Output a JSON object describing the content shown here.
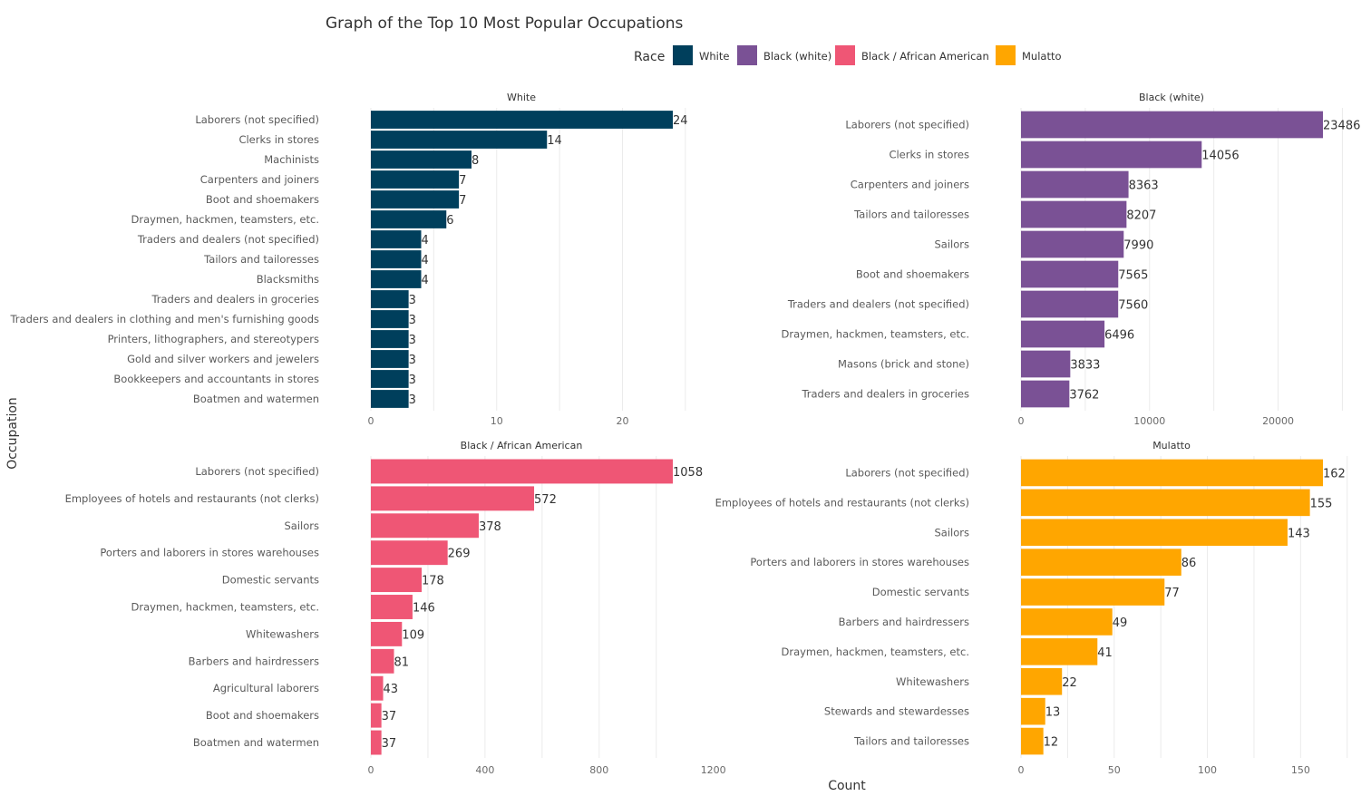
{
  "chart_data": {
    "type": "bar",
    "title": "Graph of the Top 10 Most Popular Occupations",
    "xlabel": "Count",
    "ylabel": "Occupation",
    "legend": {
      "title": "Race",
      "position": "top",
      "items": [
        {
          "name": "White",
          "color": "#003f5c"
        },
        {
          "name": "Black (white)",
          "color": "#7a5195"
        },
        {
          "name": "Black / African American",
          "color": "#ef5675"
        },
        {
          "name": "Mulatto",
          "color": "#ffa600"
        }
      ]
    },
    "panels": [
      {
        "name": "White",
        "color": "#003f5c",
        "xlim": [
          0,
          24
        ],
        "ticks": [
          0,
          10,
          20
        ],
        "categories": [
          "Laborers (not specified)",
          "Clerks in stores",
          "Machinists",
          "Carpenters and joiners",
          "Boot and shoemakers",
          "Draymen, hackmen, teamsters, etc.",
          "Traders and dealers (not specified)",
          "Tailors and tailoresses",
          "Blacksmiths",
          "Traders and dealers in groceries",
          "Traders and dealers in clothing and men's furnishing goods",
          "Printers, lithographers, and stereotypers",
          "Gold and silver workers and jewelers",
          "Bookkeepers and accountants in stores",
          "Boatmen and watermen"
        ],
        "values": [
          24,
          14,
          8,
          7,
          7,
          6,
          4,
          4,
          4,
          3,
          3,
          3,
          3,
          3,
          3
        ]
      },
      {
        "name": "Black (white)",
        "color": "#7a5195",
        "xlim": [
          0,
          23486
        ],
        "ticks": [
          0,
          10000,
          20000
        ],
        "categories": [
          "Laborers (not specified)",
          "Clerks in stores",
          "Carpenters and joiners",
          "Tailors and tailoresses",
          "Sailors",
          "Boot and shoemakers",
          "Traders and dealers (not specified)",
          "Draymen, hackmen, teamsters, etc.",
          "Masons (brick and stone)",
          "Traders and dealers in groceries"
        ],
        "values": [
          23486,
          14056,
          8363,
          8207,
          7990,
          7565,
          7560,
          6496,
          3833,
          3762
        ]
      },
      {
        "name": "Black / African American",
        "color": "#ef5675",
        "xlim": [
          0,
          1200
        ],
        "ticks": [
          0,
          400,
          800,
          1200
        ],
        "categories": [
          "Laborers (not specified)",
          "Employees of hotels and restaurants (not clerks)",
          "Sailors",
          "Porters and laborers in stores warehouses",
          "Domestic servants",
          "Draymen, hackmen, teamsters, etc.",
          "Whitewashers",
          "Barbers and hairdressers",
          "Agricultural laborers",
          "Boot and shoemakers",
          "Boatmen and watermen"
        ],
        "values": [
          1058,
          572,
          378,
          269,
          178,
          146,
          109,
          81,
          43,
          37,
          37
        ]
      },
      {
        "name": "Mulatto",
        "color": "#ffa600",
        "xlim": [
          0,
          162
        ],
        "ticks": [
          0,
          50,
          100,
          150
        ],
        "categories": [
          "Laborers (not specified)",
          "Employees of hotels and restaurants (not clerks)",
          "Sailors",
          "Porters and laborers in stores warehouses",
          "Domestic servants",
          "Barbers and hairdressers",
          "Draymen, hackmen, teamsters, etc.",
          "Whitewashers",
          "Stewards and stewardesses",
          "Tailors and tailoresses"
        ],
        "values": [
          162,
          155,
          143,
          86,
          77,
          49,
          41,
          22,
          13,
          12
        ]
      }
    ]
  }
}
